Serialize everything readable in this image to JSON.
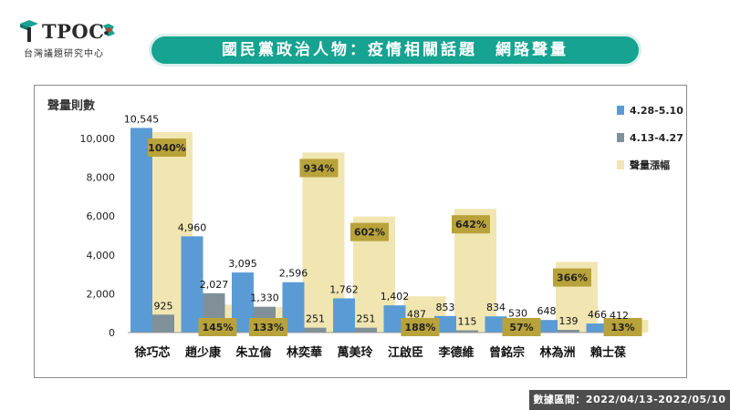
{
  "logo": {
    "text": "TPOC",
    "subtitle": "台灣議題研究中心"
  },
  "banner": {
    "title": "國民黨政治人物：疫情相關話題　網路聲量"
  },
  "footer": {
    "text": "數據區間：2022/04/13-2022/05/10"
  },
  "colors": {
    "accent": "#16a391",
    "series_recent": "#5b9bd5",
    "series_prior": "#7f9098",
    "growth": "#f1e6b2",
    "growth_label_bg": "#b8a23a"
  },
  "chart_data": {
    "type": "bar",
    "title": "",
    "ylabel": "聲量則數",
    "xlabel": "",
    "ylim": [
      0,
      10000
    ],
    "yticks": [
      "0",
      "2,000",
      "4,000",
      "6,000",
      "8,000",
      "10,000"
    ],
    "categories": [
      "徐巧芯",
      "趙少康",
      "朱立倫",
      "林奕華",
      "萬美玲",
      "江啟臣",
      "李德維",
      "曾銘宗",
      "林為洲",
      "賴士葆"
    ],
    "series": [
      {
        "name": "4.28-5.10",
        "values": [
          10545,
          4960,
          3095,
          2596,
          1762,
          1402,
          853,
          834,
          648,
          466
        ],
        "labels": [
          "10,545",
          "4,960",
          "3,095",
          "2,596",
          "1,762",
          "1,402",
          "853",
          "834",
          "648",
          "466"
        ]
      },
      {
        "name": "4.13-4.27",
        "values": [
          925,
          2027,
          1330,
          251,
          251,
          487,
          115,
          530,
          139,
          412
        ],
        "labels": [
          "925",
          "2,027",
          "1,330",
          "251",
          "251",
          "487",
          "115",
          "530",
          "139",
          "412"
        ]
      },
      {
        "name": "聲量漲幅",
        "values": [
          1040,
          145,
          133,
          934,
          602,
          188,
          642,
          57,
          366,
          13
        ],
        "labels": [
          "1040%",
          "145%",
          "133%",
          "934%",
          "602%",
          "188%",
          "642%",
          "57%",
          "366%",
          "13%"
        ]
      }
    ],
    "legend_position": "right",
    "grid": false
  }
}
